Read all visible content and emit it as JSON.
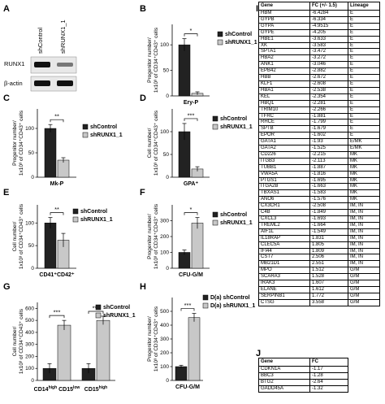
{
  "panel_labels": [
    "A",
    "B",
    "C",
    "D",
    "E",
    "F",
    "G",
    "H",
    "I",
    "J"
  ],
  "panel_a": {
    "lanes": [
      "shControl",
      "shRUNX1_1"
    ],
    "bands": [
      "RUNX1",
      "β-actin"
    ]
  },
  "chart_data": [
    {
      "panel": "B",
      "type": "bar",
      "categories": [
        "Ery-P"
      ],
      "series": [
        {
          "name": "shControl",
          "values": [
            100
          ]
        },
        {
          "name": "shRUNX1_1",
          "values": [
            5
          ]
        }
      ],
      "errors": [
        [
          12
        ],
        [
          3
        ]
      ],
      "ylabel": "Progenitor number/ 1x10³ of CD34⁺CD43⁺ cells",
      "ylim": [
        0,
        140
      ],
      "ticks": [
        0,
        50,
        100
      ],
      "significance": [
        "*"
      ]
    },
    {
      "panel": "C",
      "type": "bar",
      "categories": [
        "Mk-P"
      ],
      "series": [
        {
          "name": "shControl",
          "values": [
            100
          ]
        },
        {
          "name": "shRUNX1_1",
          "values": [
            35
          ]
        }
      ],
      "errors": [
        [
          8
        ],
        [
          5
        ]
      ],
      "ylabel": "Progenitor number/ 1x10³ of CD34⁺CD43⁺ cells",
      "ylim": [
        0,
        140
      ],
      "ticks": [
        0,
        50,
        100
      ],
      "significance": [
        "**"
      ]
    },
    {
      "panel": "D",
      "type": "bar",
      "categories": [
        "GPA⁺"
      ],
      "series": [
        {
          "name": "shControl",
          "values": [
            100
          ]
        },
        {
          "name": "shRUNX1_1",
          "values": [
            18
          ]
        }
      ],
      "errors": [
        [
          18
        ],
        [
          5
        ]
      ],
      "ylabel": "Cell number/ 1x10³ of CD34⁺CD43⁺ cells",
      "ylim": [
        0,
        150
      ],
      "ticks": [
        0,
        50,
        100
      ],
      "significance": [
        "***"
      ]
    },
    {
      "panel": "E",
      "type": "bar",
      "categories": [
        "CD41⁺CD42⁺"
      ],
      "series": [
        {
          "name": "shControl",
          "values": [
            100
          ]
        },
        {
          "name": "shRUNX1_1",
          "values": [
            62
          ]
        }
      ],
      "errors": [
        [
          12
        ],
        [
          15
        ]
      ],
      "ylabel": "Cell number/ 1x10³ of CD34⁺CD43⁺ cells",
      "ylim": [
        0,
        140
      ],
      "ticks": [
        0,
        50,
        100
      ],
      "significance": [
        "**"
      ]
    },
    {
      "panel": "F",
      "type": "bar",
      "categories": [
        "CFU-G/M"
      ],
      "series": [
        {
          "name": "shControl",
          "values": [
            100
          ]
        },
        {
          "name": "shRUNX1_1",
          "values": [
            285
          ]
        }
      ],
      "errors": [
        [
          15
        ],
        [
          35
        ]
      ],
      "ylabel": "Progenitor number/ 1x10³ of CD34⁺CD43⁺ cells",
      "ylim": [
        0,
        400
      ],
      "ticks": [
        0,
        100,
        200,
        300
      ],
      "significance": [
        "*"
      ]
    },
    {
      "panel": "G",
      "type": "bar",
      "categories": [
        "CD14^high CD15^low",
        "CD15^high"
      ],
      "series": [
        {
          "name": "shControl",
          "values": [
            100,
            100
          ]
        },
        {
          "name": "shRUNX1_1",
          "values": [
            460,
            500
          ]
        }
      ],
      "errors": [
        [
          40,
          40
        ],
        [
          40,
          35
        ]
      ],
      "ylabel": "Cell number/ 1x10³ of CD34⁺CD43⁺ cells",
      "ylim": [
        0,
        650
      ],
      "ticks": [
        0,
        100,
        200,
        300,
        400,
        500,
        600
      ],
      "significance": [
        "***",
        "***"
      ]
    },
    {
      "panel": "H",
      "type": "bar",
      "categories": [
        "CFU-G/M"
      ],
      "series": [
        {
          "name": "D(a) shControl",
          "values": [
            100
          ]
        },
        {
          "name": "D(a) shRUNX1_1",
          "values": [
            455
          ]
        }
      ],
      "errors": [
        [
          10
        ],
        [
          30
        ]
      ],
      "ylabel": "Progenitor number/ 1x10³ of CD34⁺CD43⁺ cells",
      "ylim": [
        0,
        600
      ],
      "ticks": [
        0,
        100,
        200,
        300,
        400,
        500
      ],
      "significance": [
        "***"
      ]
    },
    {
      "panel": "I",
      "type": "table",
      "columns": [
        "Gene",
        "FC (+/- 1.5)",
        "Lineage"
      ],
      "rows": [
        [
          "HBM",
          "-6.4284",
          "E"
        ],
        [
          "GYPB",
          "-6.334",
          "E"
        ],
        [
          "GYPA",
          "-4.9515",
          "E"
        ],
        [
          "GYPE",
          "-4.205",
          "E"
        ],
        [
          "HBE1",
          "-3.633",
          "E"
        ],
        [
          "XK",
          "-3.583",
          "E"
        ],
        [
          "SPTA1",
          "-3.472",
          "E"
        ],
        [
          "HBA2",
          "-3.272",
          "E"
        ],
        [
          "ANK1",
          "-3.046",
          "E"
        ],
        [
          "EPB42",
          "-2.882",
          "E"
        ],
        [
          "HBB",
          "-2.672",
          "E"
        ],
        [
          "KLF1",
          "-2.608",
          "E"
        ],
        [
          "HBA1",
          "-2.538",
          "E"
        ],
        [
          "KEL",
          "-2.354",
          "E"
        ],
        [
          "HBQ1",
          "-2.281",
          "E"
        ],
        [
          "TRIM10",
          "-2.266",
          "E"
        ],
        [
          "TFRC",
          "-1.881",
          "E"
        ],
        [
          "RHCE",
          "-1.799",
          "E"
        ],
        [
          "SPTB",
          "-1.679",
          "E"
        ],
        [
          "EPOR",
          "-1.602",
          "E"
        ],
        [
          "GATA1",
          "-1.93",
          "E/MK"
        ],
        [
          "GATA2",
          "-1.525",
          "E/MK"
        ],
        [
          "CD226",
          "-2.215",
          "MK"
        ],
        [
          "ITGB3",
          "-2.113",
          "MK"
        ],
        [
          "TUBB1",
          "-1.887",
          "MK"
        ],
        [
          "VWA5A",
          "-1.816",
          "MK"
        ],
        [
          "PTGS1",
          "-1.695",
          "MK"
        ],
        [
          "ITGA2B",
          "-1.663",
          "MK"
        ],
        [
          "TBXAS1",
          "-1.583",
          "MK"
        ],
        [
          "ANO6",
          "-1.576",
          "MK"
        ],
        [
          "CX3CR1",
          "-2.508",
          "IM, IN"
        ],
        [
          "C4B",
          "-1.849",
          "IM, IN"
        ],
        [
          "CXCL3",
          "-1.693",
          "IM, IN"
        ],
        [
          "TREML2",
          "-1.664",
          "IM, IN"
        ],
        [
          "AIF1L",
          "-1.549",
          "IM, IN"
        ],
        [
          "IL18RAP",
          "1.831",
          "IM, IN"
        ],
        [
          "CLEC5A",
          "1.805",
          "IM, IN"
        ],
        [
          "IFI44",
          "1.809",
          "IM, IN"
        ],
        [
          "CST7",
          "2.506",
          "IM, IN"
        ],
        [
          "MB21D1",
          "2.551",
          "IM, IN"
        ],
        [
          "MPO",
          "1.512",
          "G/M"
        ],
        [
          "SCARA3",
          "1.528",
          "G/M"
        ],
        [
          "IRAK3",
          "1.607",
          "G/M"
        ],
        [
          "ELANE",
          "1.612",
          "G/M"
        ],
        [
          "SERPINB1",
          "1.772",
          "G/M"
        ],
        [
          "CTSG",
          "3.558",
          "G/M"
        ]
      ]
    },
    {
      "panel": "J",
      "type": "table",
      "columns": [
        "Gene",
        "FC"
      ],
      "rows": [
        [
          "CDKN1A",
          "-1.17"
        ],
        [
          "BBC3",
          "-1.28"
        ],
        [
          "BTG2",
          "-2.64"
        ],
        [
          "GADD45A",
          "-1.32"
        ]
      ]
    }
  ],
  "colors": {
    "shControl": "#222222",
    "shRUNX1_1": "#c8c8c8"
  }
}
